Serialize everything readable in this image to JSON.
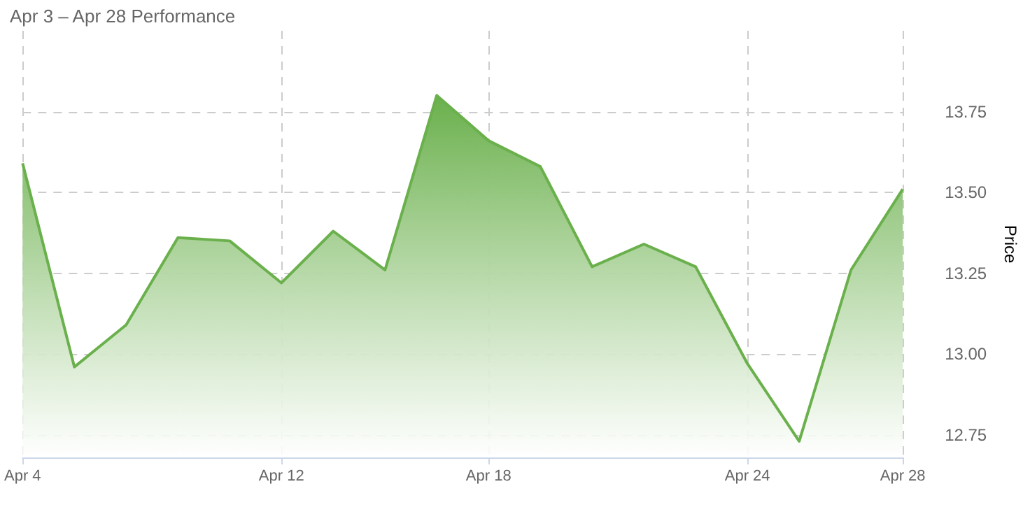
{
  "chart_data": {
    "type": "area",
    "title": "Apr 3 – Apr 28 Performance",
    "ylabel": "Price",
    "categories": [
      "Apr 4",
      null,
      null,
      null,
      null,
      "Apr 12",
      null,
      null,
      null,
      "Apr 18",
      null,
      null,
      null,
      null,
      "Apr 24",
      null,
      null,
      "Apr 28"
    ],
    "series": [
      {
        "color": "#6ab04c",
        "values": [
          13.59,
          12.96,
          13.09,
          13.36,
          13.35,
          13.22,
          13.38,
          13.26,
          13.8,
          13.66,
          13.58,
          13.27,
          13.34,
          13.27,
          12.97,
          12.73,
          13.26,
          13.51
        ]
      }
    ],
    "ylim": [
      12.68,
      14.0
    ],
    "yticks": [
      12.75,
      {
        "value": 13.0,
        "label": "13.00"
      },
      13.25,
      {
        "value": 13.5,
        "label": "13.50"
      },
      13.75
    ],
    "grid": true,
    "marker": "none",
    "line_style": "solid"
  }
}
